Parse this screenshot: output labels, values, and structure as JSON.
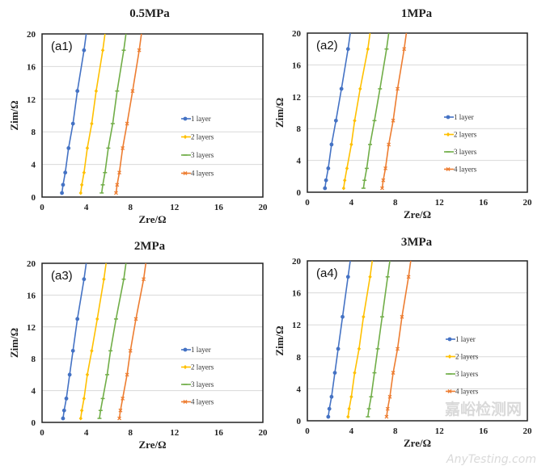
{
  "chart_data": [
    {
      "type": "line",
      "panel": "(a1)",
      "title": "0.5MPa",
      "xlabel": "Zre/Ω",
      "ylabel": "Zim/Ω",
      "xlim": [
        0,
        20
      ],
      "ylim": [
        0,
        20
      ],
      "xticks": [
        "0",
        "4",
        "8",
        "12",
        "16",
        "20"
      ],
      "yticks": [
        "0",
        "4",
        "8",
        "12",
        "16",
        "20"
      ],
      "grid": "horizontal",
      "legend": "center-right",
      "series": [
        {
          "name": "1 layer",
          "color": "#4472c4",
          "marker": "circle",
          "x": [
            1.8,
            1.9,
            2.1,
            2.4,
            2.8,
            3.2,
            3.8,
            4.0
          ],
          "y": [
            0.5,
            1.5,
            3,
            6,
            9,
            13,
            18,
            20
          ]
        },
        {
          "name": "2 layers",
          "color": "#ffc000",
          "marker": "diamond",
          "x": [
            3.5,
            3.6,
            3.8,
            4.1,
            4.5,
            4.9,
            5.5,
            5.7
          ],
          "y": [
            0.5,
            1.5,
            3,
            6,
            9,
            13,
            18,
            20
          ]
        },
        {
          "name": "3 layers",
          "color": "#70ad47",
          "marker": "dash",
          "x": [
            5.4,
            5.5,
            5.7,
            6.0,
            6.4,
            6.8,
            7.4,
            7.6
          ],
          "y": [
            0.5,
            1.5,
            3,
            6,
            9,
            13,
            18,
            20
          ]
        },
        {
          "name": "4 layers",
          "color": "#ed7d31",
          "marker": "cross",
          "x": [
            6.7,
            6.8,
            7.0,
            7.3,
            7.7,
            8.2,
            8.8,
            9.0
          ],
          "y": [
            0.5,
            1.5,
            3,
            6,
            9,
            13,
            18,
            20
          ]
        }
      ]
    },
    {
      "type": "line",
      "panel": "(a2)",
      "title": "1MPa",
      "xlabel": "Zre/Ω",
      "ylabel": "Zim/Ω",
      "xlim": [
        0,
        20
      ],
      "ylim": [
        0,
        20
      ],
      "xticks": [
        "0",
        "4",
        "8",
        "12",
        "16",
        "20"
      ],
      "yticks": [
        "0",
        "4",
        "8",
        "12",
        "16",
        "20"
      ],
      "grid": "horizontal",
      "legend": "center-right",
      "series": [
        {
          "name": "1 layer",
          "color": "#4472c4",
          "marker": "circle",
          "x": [
            1.6,
            1.7,
            1.9,
            2.2,
            2.6,
            3.1,
            3.7,
            3.9
          ],
          "y": [
            0.5,
            1.5,
            3,
            6,
            9,
            13,
            18,
            20
          ]
        },
        {
          "name": "2 layers",
          "color": "#ffc000",
          "marker": "diamond",
          "x": [
            3.3,
            3.4,
            3.6,
            4.0,
            4.3,
            4.8,
            5.5,
            5.7
          ],
          "y": [
            0.5,
            1.5,
            3,
            6,
            9,
            13,
            18,
            20
          ]
        },
        {
          "name": "3 layers",
          "color": "#70ad47",
          "marker": "dash",
          "x": [
            5.1,
            5.2,
            5.4,
            5.7,
            6.1,
            6.6,
            7.2,
            7.4
          ],
          "y": [
            0.5,
            1.5,
            3,
            6,
            9,
            13,
            18,
            20
          ]
        },
        {
          "name": "4 layers",
          "color": "#ed7d31",
          "marker": "cross",
          "x": [
            6.8,
            6.9,
            7.1,
            7.4,
            7.8,
            8.2,
            8.8,
            9.0
          ],
          "y": [
            0.5,
            1.5,
            3,
            6,
            9,
            13,
            18,
            20
          ]
        }
      ]
    },
    {
      "type": "line",
      "panel": "(a3)",
      "title": "2MPa",
      "xlabel": "Zre/Ω",
      "ylabel": "Zim/Ω",
      "xlim": [
        0,
        20
      ],
      "ylim": [
        0,
        20
      ],
      "xticks": [
        "0",
        "4",
        "8",
        "12",
        "16",
        "20"
      ],
      "yticks": [
        "0",
        "4",
        "8",
        "12",
        "16",
        "20"
      ],
      "grid": "horizontal",
      "legend": "center-right",
      "series": [
        {
          "name": "1 layer",
          "color": "#4472c4",
          "marker": "circle",
          "x": [
            1.9,
            2.0,
            2.2,
            2.5,
            2.8,
            3.2,
            3.8,
            4.0
          ],
          "y": [
            0.5,
            1.5,
            3,
            6,
            9,
            13,
            18,
            20
          ]
        },
        {
          "name": "2 layers",
          "color": "#ffc000",
          "marker": "diamond",
          "x": [
            3.5,
            3.6,
            3.8,
            4.1,
            4.5,
            5.0,
            5.6,
            5.8
          ],
          "y": [
            0.5,
            1.5,
            3,
            6,
            9,
            13,
            18,
            20
          ]
        },
        {
          "name": "3 layers",
          "color": "#70ad47",
          "marker": "dash",
          "x": [
            5.2,
            5.3,
            5.5,
            5.9,
            6.2,
            6.7,
            7.4,
            7.6
          ],
          "y": [
            0.5,
            1.5,
            3,
            6,
            9,
            13,
            18,
            20
          ]
        },
        {
          "name": "4 layers",
          "color": "#ed7d31",
          "marker": "cross",
          "x": [
            7.0,
            7.1,
            7.3,
            7.7,
            8.0,
            8.5,
            9.2,
            9.4
          ],
          "y": [
            0.5,
            1.5,
            3,
            6,
            9,
            13,
            18,
            20
          ]
        }
      ]
    },
    {
      "type": "line",
      "panel": "(a4)",
      "title": "3MPa",
      "xlabel": "Zre/Ω",
      "ylabel": "Zim/Ω",
      "xlim": [
        0,
        20
      ],
      "ylim": [
        0,
        20
      ],
      "xticks": [
        "0",
        "4",
        "8",
        "12",
        "16",
        "20"
      ],
      "yticks": [
        "0",
        "4",
        "8",
        "12",
        "16",
        "20"
      ],
      "grid": "horizontal",
      "legend": "center-right",
      "series": [
        {
          "name": "1 layer",
          "color": "#4472c4",
          "marker": "circle",
          "x": [
            1.9,
            2.0,
            2.2,
            2.5,
            2.8,
            3.2,
            3.7,
            3.9
          ],
          "y": [
            0.5,
            1.5,
            3,
            6,
            9,
            13,
            18,
            20
          ]
        },
        {
          "name": "2 layers",
          "color": "#ffc000",
          "marker": "diamond",
          "x": [
            3.7,
            3.8,
            4.0,
            4.3,
            4.7,
            5.1,
            5.7,
            5.9
          ],
          "y": [
            0.5,
            1.5,
            3,
            6,
            9,
            13,
            18,
            20
          ]
        },
        {
          "name": "3 layers",
          "color": "#70ad47",
          "marker": "dash",
          "x": [
            5.5,
            5.6,
            5.8,
            6.1,
            6.4,
            6.8,
            7.3,
            7.5
          ],
          "y": [
            0.5,
            1.5,
            3,
            6,
            9,
            13,
            18,
            20
          ]
        },
        {
          "name": "4 layers",
          "color": "#ed7d31",
          "marker": "cross",
          "x": [
            7.2,
            7.3,
            7.5,
            7.8,
            8.2,
            8.6,
            9.2,
            9.4
          ],
          "y": [
            0.5,
            1.5,
            3,
            6,
            9,
            13,
            18,
            20
          ]
        }
      ]
    }
  ],
  "watermark": {
    "cn": "嘉峪检测网",
    "en": "AnyTesting.com"
  }
}
